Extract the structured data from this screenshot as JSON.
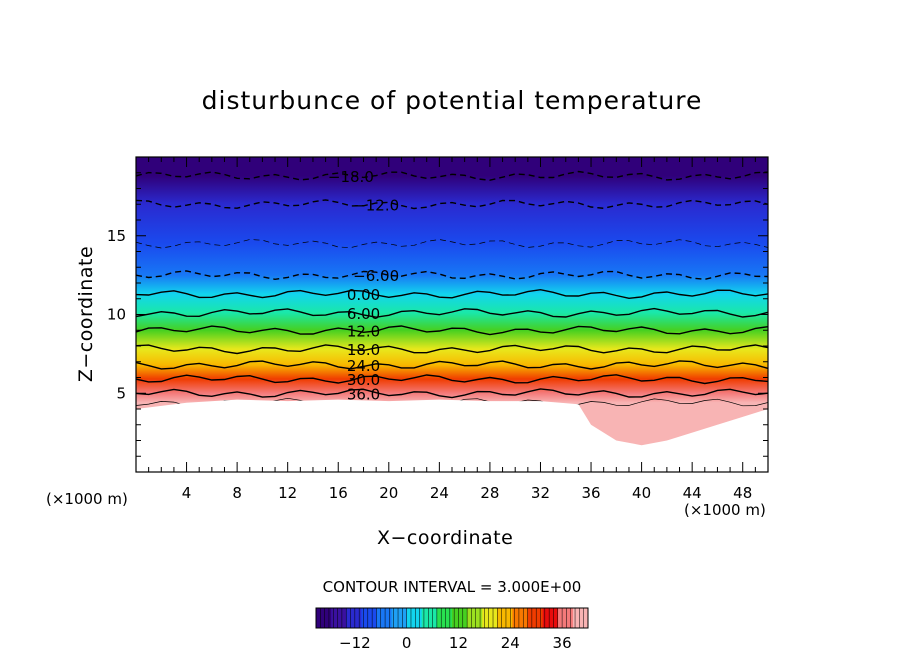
{
  "chart_data": {
    "type": "heatmap",
    "title": "disturbunce of potential temperature",
    "xlabel": "X−coordinate",
    "ylabel": "Z−coordinate",
    "x_unit_label_left": "(×1000 m)",
    "x_unit_label_right": "(×1000 m)",
    "xlim": [
      0,
      50
    ],
    "ylim": [
      0,
      20
    ],
    "x_ticks": [
      4,
      8,
      12,
      16,
      20,
      24,
      28,
      32,
      36,
      40,
      44,
      48
    ],
    "y_ticks": [
      5,
      10,
      15
    ],
    "contour_interval_label": "CONTOUR INTERVAL = 3.000E+00",
    "contour_interval": 3.0,
    "colorbar": {
      "min": -21,
      "max": 42,
      "ticks": [
        -12,
        0,
        12,
        24,
        36
      ],
      "colors": [
        "#30007a",
        "#3a10a0",
        "#2a2ad0",
        "#1a4aee",
        "#1877f5",
        "#1fa0f5",
        "#12d4ee",
        "#1ae8a8",
        "#28e050",
        "#46d020",
        "#9ce020",
        "#e8e81c",
        "#f8b800",
        "#f87800",
        "#f03c00",
        "#e80c0c",
        "#f47a7a",
        "#f8b4b4"
      ]
    },
    "contour_labels": [
      "−18.0",
      "−12.0",
      "−6.00",
      "0.00",
      "6.00",
      "12.0",
      "18.0",
      "24.0",
      "30.0",
      "36.0"
    ],
    "field_profile": {
      "z": [
        18.8,
        17.0,
        14.5,
        12.5,
        11.3,
        10.1,
        9.0,
        7.8,
        6.8,
        5.9,
        5.0,
        4.4
      ],
      "theta": [
        -18,
        -12,
        -9,
        -6,
        0,
        6,
        12,
        18,
        24,
        30,
        36,
        40
      ]
    },
    "terrain": {
      "x": [
        0,
        4,
        8,
        12,
        16,
        20,
        24,
        28,
        32,
        35,
        36,
        38,
        40,
        42,
        44,
        46,
        48,
        50
      ],
      "z": [
        4.0,
        4.4,
        4.6,
        4.5,
        4.6,
        4.5,
        4.6,
        4.5,
        4.5,
        4.3,
        3.0,
        2.0,
        1.7,
        2.0,
        2.5,
        3.0,
        3.5,
        4.0
      ]
    },
    "colors": {
      "bar_outline": "#000000",
      "plot_border": "#000000",
      "background": "#ffffff"
    }
  }
}
